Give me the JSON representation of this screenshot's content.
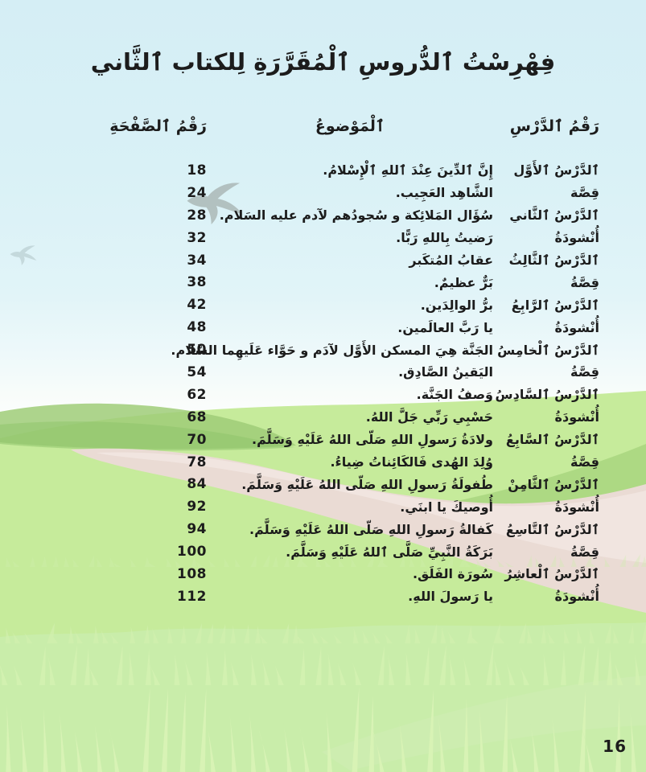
{
  "page": {
    "title": "فِهْرِسْتُ ٱلدُّروسِ ٱلْمُقَرَّرَةِ لِلكتاب ٱلثَّاني",
    "folio": "16"
  },
  "table": {
    "headers": {
      "lesson": "رَقْمُ ٱلدَّرْسِ",
      "topic": "ٱلْمَوْضوعُ",
      "page": "رَقْمُ ٱلصَّفْحَةِ"
    },
    "rows": [
      {
        "lesson": "ٱلدَّرْسُ ٱلأَوَّل",
        "topic": "إِنَّ ٱلدِّينَ عِنْدَ ٱللهِ ٱلْإِسْلامُ.",
        "page": "18"
      },
      {
        "lesson": "قِصَّة",
        "topic": "الشَّاهِد العَجِيب.",
        "page": "24"
      },
      {
        "lesson": "ٱلدَّرْسُ ٱلثَّاني",
        "topic": "سُؤَال المَلائِكة و سُجودُهم لآدم عليه السَلام.",
        "page": "28"
      },
      {
        "lesson": "أُنْشودَةُ",
        "topic": "رَضيتُ بِاللهِ رَبًّا.",
        "page": "32"
      },
      {
        "lesson": "ٱلدَّرْسُ ٱلثَّالِثُ",
        "topic": "عقابُ المُتكَبر",
        "page": "34"
      },
      {
        "lesson": "قِصَّةُ",
        "topic": "بَرٌّ عظيمٌ.",
        "page": "38"
      },
      {
        "lesson": "ٱلدَّرْسُ ٱلرَّابِعُ",
        "topic": "برُّ الوالِدَين.",
        "page": "42"
      },
      {
        "lesson": "أُنْشودَةُ",
        "topic": "يا رَبَّ العالَمين.",
        "page": "48"
      },
      {
        "lesson": "ٱلدَّرْسُ ٱلْخامِسُ",
        "topic": "الجَنَّة هِيَ المسكن الأَوَّل لآدَم و حَوَّاء عَلَيهِما السَّلام.",
        "page": "50"
      },
      {
        "lesson": "قِصَّةُ",
        "topic": "اليَقينُ الصَّادِق.",
        "page": "54"
      },
      {
        "lesson": "ٱلدَّرْسُ ٱلسَّادِسُ",
        "topic": "وَصفُ الجَنَّة.",
        "page": "62"
      },
      {
        "lesson": "أُنْشودَةُ",
        "topic": "حَسْبِي رَبِّي جَلَّ اللهُ.",
        "page": "68"
      },
      {
        "lesson": "ٱلدَّرْسُ ٱلسَّابِعُ",
        "topic": "ولادَةُ رَسولِ اللهِ صَلّى اللهُ عَلَيْهِ وَسَلَّمَ.",
        "page": "70"
      },
      {
        "lesson": "قِصَّةُ",
        "topic": "وُلِدَ الهُدى فَالكَائِناتُ ضِياءُ.",
        "page": "78"
      },
      {
        "lesson": "ٱلدَّرْسُ ٱلثَّامِنْ",
        "topic": "طُفولَةُ رَسولِ اللهِ صَلّى اللهُ عَلَيْهِ وَسَلَّمَ.",
        "page": "84"
      },
      {
        "lesson": "أُنْشودَةُ",
        "topic": "أُوصيكَ يا ابنَي.",
        "page": "92"
      },
      {
        "lesson": "ٱلدَّرْسُ ٱلتَّاسِعُ",
        "topic": "كَفالةُ رَسولِ اللهِ صَلّى اللهُ عَلَيْهِ وَسَلَّمَ.",
        "page": "94"
      },
      {
        "lesson": "قِصَّةُ",
        "topic": "بَرَكَةُ النَّبِيِّ صَلَّى ٱللهُ عَلَيْهِ وَسَلَّمَ.",
        "page": "100"
      },
      {
        "lesson": "ٱلدَّرْسُ ٱلْعاشِرُ",
        "topic": "سُورَة الفَلَق.",
        "page": "108"
      },
      {
        "lesson": "أُنْشودَةُ",
        "topic": "يا رَسولَ اللهِ.",
        "page": "112"
      }
    ]
  },
  "icons": {
    "bird_large": "swallow-silhouette",
    "bird_small": "faint-swallow-silhouette"
  },
  "colors": {
    "sky": "#d9f1f6",
    "field_green": "#c6eb9b",
    "hill_green": "#a2cf7b",
    "pale_grass": "#c9edae",
    "path_pink": "#eadbd4",
    "text": "#1c1c1c",
    "bird_gray": "#a9b5b3"
  }
}
